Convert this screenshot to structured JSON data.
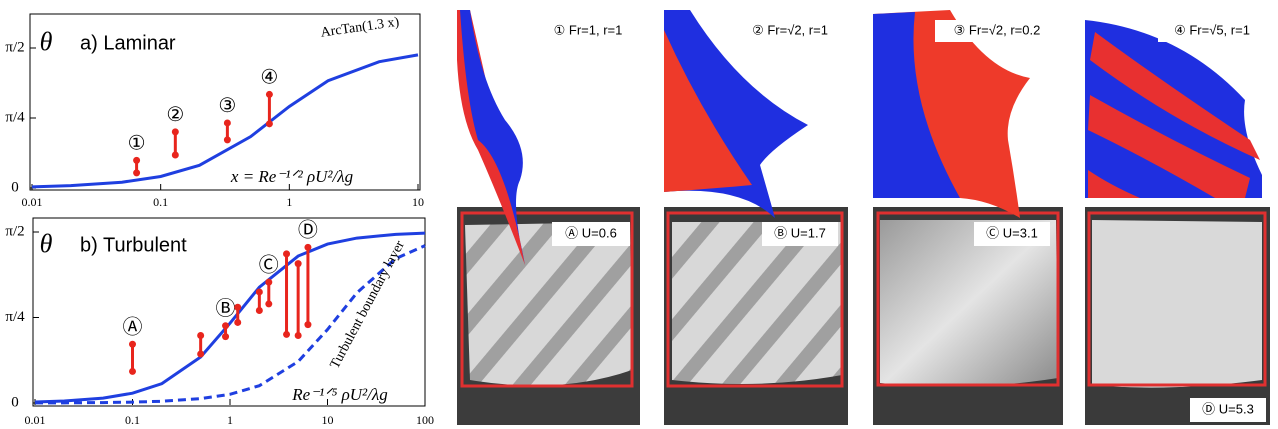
{
  "chart_data": [
    {
      "type": "line",
      "panel_label": "a) Laminar",
      "y_label": "θ",
      "x_label": "x = Re⁻¹ᐟ² ρU²/λg",
      "xlog": true,
      "xlim": [
        0.01,
        10
      ],
      "xticks": [
        0.01,
        0.1,
        1,
        10
      ],
      "ylim": [
        0,
        1.5708
      ],
      "yticks": [
        0,
        {
          "value": 0.7854,
          "label": "π/4"
        },
        {
          "value": 1.5708,
          "label": "π/2"
        }
      ],
      "series": [
        {
          "name": "ArcTan(1.3 x)",
          "color": "#1f3fe0",
          "dashed": false,
          "x": [
            0.01,
            0.02,
            0.05,
            0.1,
            0.2,
            0.5,
            1,
            2,
            5,
            10
          ],
          "values": [
            0.013,
            0.026,
            0.065,
            0.129,
            0.254,
            0.576,
            0.915,
            1.203,
            1.417,
            1.494
          ]
        }
      ],
      "ranges": {
        "color": "#e8251d",
        "x": [
          0.065,
          0.13,
          0.33,
          0.7
        ],
        "low": [
          0.17,
          0.37,
          0.54,
          0.72
        ],
        "high": [
          0.31,
          0.63,
          0.73,
          1.05
        ],
        "labels": [
          "①",
          "②",
          "③",
          "④"
        ]
      }
    },
    {
      "type": "line",
      "panel_label": "b) Turbulent",
      "y_label": "θ",
      "x_label": "Re⁻¹ᐟ⁵ ρU²/λg",
      "xlog": true,
      "xlim": [
        0.01,
        100
      ],
      "xticks": [
        0.01,
        0.1,
        1,
        10,
        100
      ],
      "ylim": [
        0,
        1.5708
      ],
      "yticks": [
        0,
        {
          "value": 0.7854,
          "label": "π/4"
        },
        {
          "value": 1.5708,
          "label": "π/2"
        }
      ],
      "series": [
        {
          "color": "#1f3fe0",
          "dashed": false,
          "x": [
            0.01,
            0.02,
            0.05,
            0.1,
            0.2,
            0.5,
            1,
            2,
            5,
            10,
            20,
            50,
            100
          ],
          "values": [
            0.009,
            0.018,
            0.045,
            0.09,
            0.178,
            0.423,
            0.733,
            1.064,
            1.35,
            1.46,
            1.515,
            1.549,
            1.56
          ]
        },
        {
          "name": "Turbulent boundary layer",
          "color": "#1f3fe0",
          "dashed": true,
          "x": [
            0.01,
            0.02,
            0.05,
            0.1,
            0.2,
            0.5,
            1,
            2,
            5,
            10,
            20,
            50,
            100
          ],
          "values": [
            0.0008,
            0.0016,
            0.004,
            0.008,
            0.016,
            0.04,
            0.08,
            0.159,
            0.381,
            0.675,
            1.012,
            1.326,
            1.446
          ]
        }
      ],
      "ranges": {
        "color": "#e8251d",
        "x": [
          0.1,
          0.5,
          0.9,
          1.2,
          2,
          2.5,
          3.8,
          5,
          6.3
        ],
        "low": [
          0.29,
          0.45,
          0.61,
          0.74,
          0.85,
          0.91,
          0.63,
          0.62,
          0.72
        ],
        "high": [
          0.54,
          0.62,
          0.71,
          0.88,
          1.02,
          1.11,
          1.37,
          1.28,
          1.43
        ],
        "labels": [
          "Ⓐ",
          null,
          "Ⓑ",
          null,
          null,
          "Ⓒ",
          null,
          null,
          "Ⓓ"
        ]
      }
    }
  ],
  "panels": {
    "simulations": [
      "① Fr=1, r=1",
      "② Fr=√2, r=1",
      "③ Fr=√2, r=0.2",
      "④ Fr=√5, r=1"
    ],
    "experiments": [
      "Ⓐ U=0.6",
      "Ⓑ U=1.7",
      "Ⓒ U=3.1",
      "Ⓓ U=5.3"
    ]
  }
}
